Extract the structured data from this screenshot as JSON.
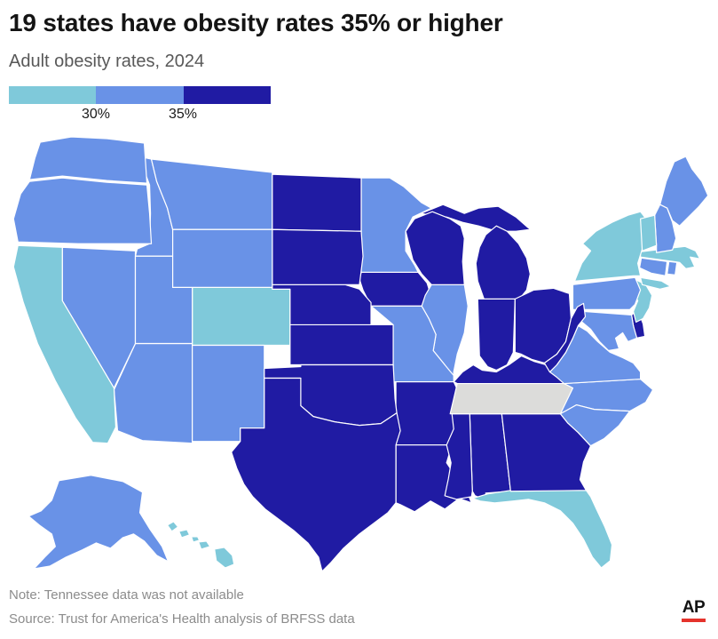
{
  "header": {
    "title": "19 states have obesity rates 35% or higher",
    "subtitle": "Adult obesity rates, 2024"
  },
  "legend": {
    "tick_labels": [
      "30%",
      "35%"
    ]
  },
  "chart_data": {
    "type": "choropleth",
    "title": "19 states have obesity rates 35% or higher",
    "subtitle": "Adult obesity rates, 2024",
    "geography": "United States",
    "measure": "adult obesity rate",
    "thresholds": [
      "30%",
      "35%"
    ],
    "bins": [
      {
        "id": "under_30",
        "label": "below 30%",
        "color": "#7fc9da"
      },
      {
        "id": "30_to_35",
        "label": "30% to 35%",
        "color": "#6992e7"
      },
      {
        "id": "35_plus",
        "label": "35% or higher",
        "color": "#201ba3"
      },
      {
        "id": "no_data",
        "label": "data not available",
        "color": "#dcdcda"
      }
    ],
    "states": [
      {
        "abbr": "AK",
        "name": "Alaska",
        "bin": "30_to_35"
      },
      {
        "abbr": "AL",
        "name": "Alabama",
        "bin": "35_plus"
      },
      {
        "abbr": "AR",
        "name": "Arkansas",
        "bin": "35_plus"
      },
      {
        "abbr": "AZ",
        "name": "Arizona",
        "bin": "30_to_35"
      },
      {
        "abbr": "CA",
        "name": "California",
        "bin": "under_30"
      },
      {
        "abbr": "CO",
        "name": "Colorado",
        "bin": "under_30"
      },
      {
        "abbr": "CT",
        "name": "Connecticut",
        "bin": "30_to_35"
      },
      {
        "abbr": "DE",
        "name": "Delaware",
        "bin": "35_plus"
      },
      {
        "abbr": "FL",
        "name": "Florida",
        "bin": "under_30"
      },
      {
        "abbr": "GA",
        "name": "Georgia",
        "bin": "35_plus"
      },
      {
        "abbr": "HI",
        "name": "Hawaii",
        "bin": "under_30"
      },
      {
        "abbr": "IA",
        "name": "Iowa",
        "bin": "35_plus"
      },
      {
        "abbr": "ID",
        "name": "Idaho",
        "bin": "30_to_35"
      },
      {
        "abbr": "IL",
        "name": "Illinois",
        "bin": "30_to_35"
      },
      {
        "abbr": "IN",
        "name": "Indiana",
        "bin": "35_plus"
      },
      {
        "abbr": "KS",
        "name": "Kansas",
        "bin": "35_plus"
      },
      {
        "abbr": "KY",
        "name": "Kentucky",
        "bin": "35_plus"
      },
      {
        "abbr": "LA",
        "name": "Louisiana",
        "bin": "35_plus"
      },
      {
        "abbr": "MA",
        "name": "Massachusetts",
        "bin": "under_30"
      },
      {
        "abbr": "MD",
        "name": "Maryland",
        "bin": "30_to_35"
      },
      {
        "abbr": "ME",
        "name": "Maine",
        "bin": "30_to_35"
      },
      {
        "abbr": "MI",
        "name": "Michigan",
        "bin": "35_plus"
      },
      {
        "abbr": "MN",
        "name": "Minnesota",
        "bin": "30_to_35"
      },
      {
        "abbr": "MO",
        "name": "Missouri",
        "bin": "30_to_35"
      },
      {
        "abbr": "MS",
        "name": "Mississippi",
        "bin": "35_plus"
      },
      {
        "abbr": "MT",
        "name": "Montana",
        "bin": "30_to_35"
      },
      {
        "abbr": "NC",
        "name": "North Carolina",
        "bin": "30_to_35"
      },
      {
        "abbr": "ND",
        "name": "North Dakota",
        "bin": "35_plus"
      },
      {
        "abbr": "NE",
        "name": "Nebraska",
        "bin": "35_plus"
      },
      {
        "abbr": "NH",
        "name": "New Hampshire",
        "bin": "30_to_35"
      },
      {
        "abbr": "NJ",
        "name": "New Jersey",
        "bin": "under_30"
      },
      {
        "abbr": "NM",
        "name": "New Mexico",
        "bin": "30_to_35"
      },
      {
        "abbr": "NV",
        "name": "Nevada",
        "bin": "30_to_35"
      },
      {
        "abbr": "NY",
        "name": "New York",
        "bin": "under_30"
      },
      {
        "abbr": "OH",
        "name": "Ohio",
        "bin": "35_plus"
      },
      {
        "abbr": "OK",
        "name": "Oklahoma",
        "bin": "35_plus"
      },
      {
        "abbr": "OR",
        "name": "Oregon",
        "bin": "30_to_35"
      },
      {
        "abbr": "PA",
        "name": "Pennsylvania",
        "bin": "30_to_35"
      },
      {
        "abbr": "RI",
        "name": "Rhode Island",
        "bin": "30_to_35"
      },
      {
        "abbr": "SC",
        "name": "South Carolina",
        "bin": "30_to_35"
      },
      {
        "abbr": "SD",
        "name": "South Dakota",
        "bin": "35_plus"
      },
      {
        "abbr": "TN",
        "name": "Tennessee",
        "bin": "no_data"
      },
      {
        "abbr": "TX",
        "name": "Texas",
        "bin": "35_plus"
      },
      {
        "abbr": "UT",
        "name": "Utah",
        "bin": "30_to_35"
      },
      {
        "abbr": "VA",
        "name": "Virginia",
        "bin": "30_to_35"
      },
      {
        "abbr": "VT",
        "name": "Vermont",
        "bin": "under_30"
      },
      {
        "abbr": "WA",
        "name": "Washington",
        "bin": "30_to_35"
      },
      {
        "abbr": "WI",
        "name": "Wisconsin",
        "bin": "35_plus"
      },
      {
        "abbr": "WV",
        "name": "West Virginia",
        "bin": "35_plus"
      },
      {
        "abbr": "WY",
        "name": "Wyoming",
        "bin": "30_to_35"
      }
    ]
  },
  "footer": {
    "note": "Note: Tennessee data was not available",
    "source": "Source: Trust for America's Health analysis of BRFSS data",
    "logo": "AP"
  }
}
